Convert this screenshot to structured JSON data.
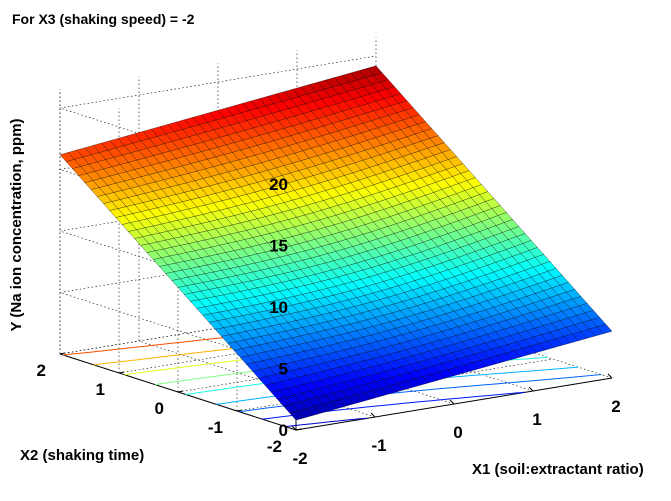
{
  "chart_data": {
    "type": "surface",
    "title": "For X3 (shaking speed) = -2",
    "xlabel": "X1 (soil:extractant ratio)",
    "ylabel": "X2 (shaking time)",
    "zlabel": "Y (Na ion concentration, ppm)",
    "x_ticks": [
      "-2",
      "-1",
      "0",
      "1",
      "2"
    ],
    "y_ticks": [
      "-2",
      "-1",
      "0",
      "1",
      "2"
    ],
    "z_ticks": [
      "0",
      "5",
      "10",
      "15",
      "20"
    ],
    "xlim": [
      -2,
      2
    ],
    "ylim": [
      -2,
      2
    ],
    "zlim": [
      0,
      20
    ],
    "grid": true,
    "colormap": "jet",
    "contour_projection": "floor",
    "corner_values": [
      {
        "x1": -2,
        "x2": -2,
        "y": 0.8
      },
      {
        "x1": 2,
        "x2": -2,
        "y": 3.8
      },
      {
        "x1": -2,
        "x2": 2,
        "y": 16.2
      },
      {
        "x1": 2,
        "x2": 2,
        "y": 19.2
      }
    ]
  }
}
